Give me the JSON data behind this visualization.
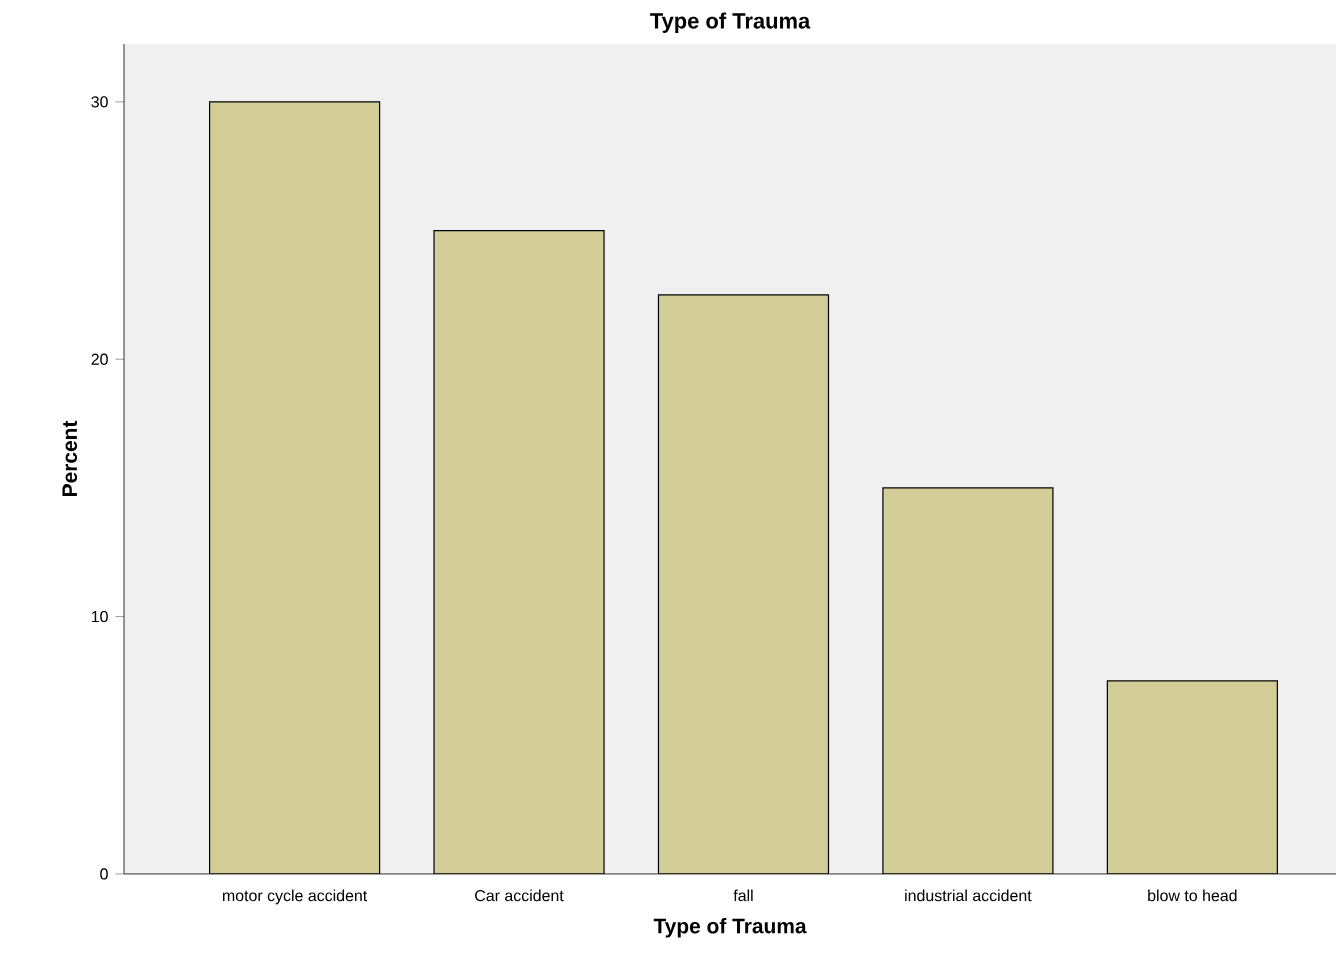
{
  "chart_data": {
    "type": "bar",
    "title": "Type of Trauma",
    "xlabel": "Type of Trauma",
    "ylabel": "Percent",
    "categories": [
      "motor cycle accident",
      "Car accident",
      "fall",
      "industrial accident",
      "blow to head"
    ],
    "values": [
      30,
      25,
      22.5,
      15,
      7.5
    ],
    "color": "#d3ce98",
    "ylim": [
      0,
      32.25
    ],
    "yticks": [
      0,
      10,
      20,
      30
    ]
  }
}
